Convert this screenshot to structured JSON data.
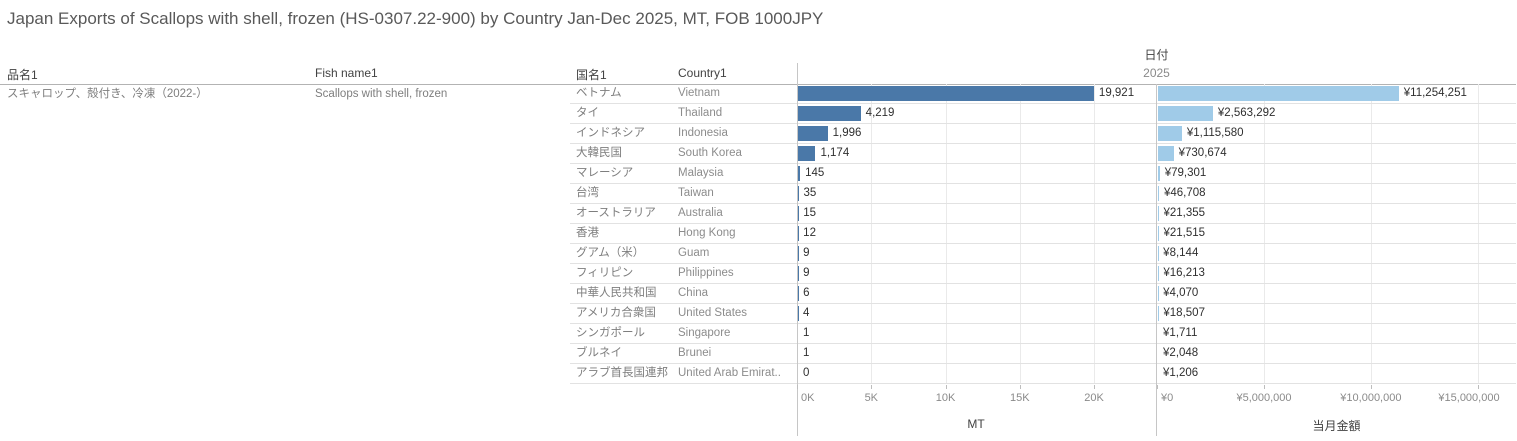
{
  "title": "Japan Exports of Scallops with shell, frozen (HS-0307.22-900) by Country Jan-Dec 2025, MT, FOB 1000JPY",
  "date_header": {
    "label": "日付",
    "year": "2025"
  },
  "columns": {
    "product_jp": "品名1",
    "product_en": "Fish name1",
    "country_jp": "国名1",
    "country_en": "Country1"
  },
  "product_row": {
    "name_jp": "スキャロップ、殻付き、冷凍（2022-）",
    "name_en": "Scallops with shell, frozen"
  },
  "rows": [
    {
      "country_jp": "ベトナム",
      "country_en": "Vietnam",
      "mt": 19921,
      "mt_label": "19,921",
      "amount": 11254251,
      "amount_label": "¥11,254,251"
    },
    {
      "country_jp": "タイ",
      "country_en": "Thailand",
      "mt": 4219,
      "mt_label": "4,219",
      "amount": 2563292,
      "amount_label": "¥2,563,292"
    },
    {
      "country_jp": "インドネシア",
      "country_en": "Indonesia",
      "mt": 1996,
      "mt_label": "1,996",
      "amount": 1115580,
      "amount_label": "¥1,115,580"
    },
    {
      "country_jp": "大韓民国",
      "country_en": "South Korea",
      "mt": 1174,
      "mt_label": "1,174",
      "amount": 730674,
      "amount_label": "¥730,674"
    },
    {
      "country_jp": "マレーシア",
      "country_en": "Malaysia",
      "mt": 145,
      "mt_label": "145",
      "amount": 79301,
      "amount_label": "¥79,301"
    },
    {
      "country_jp": "台湾",
      "country_en": "Taiwan",
      "mt": 35,
      "mt_label": "35",
      "amount": 46708,
      "amount_label": "¥46,708"
    },
    {
      "country_jp": "オーストラリア",
      "country_en": "Australia",
      "mt": 15,
      "mt_label": "15",
      "amount": 21355,
      "amount_label": "¥21,355"
    },
    {
      "country_jp": "香港",
      "country_en": "Hong Kong",
      "mt": 12,
      "mt_label": "12",
      "amount": 21515,
      "amount_label": "¥21,515"
    },
    {
      "country_jp": "グアム（米）",
      "country_en": "Guam",
      "mt": 9,
      "mt_label": "9",
      "amount": 8144,
      "amount_label": "¥8,144"
    },
    {
      "country_jp": "フィリピン",
      "country_en": "Philippines",
      "mt": 9,
      "mt_label": "9",
      "amount": 16213,
      "amount_label": "¥16,213"
    },
    {
      "country_jp": "中華人民共和国",
      "country_en": "China",
      "mt": 6,
      "mt_label": "6",
      "amount": 4070,
      "amount_label": "¥4,070"
    },
    {
      "country_jp": "アメリカ合衆国",
      "country_en": "United States",
      "mt": 4,
      "mt_label": "4",
      "amount": 18507,
      "amount_label": "¥18,507"
    },
    {
      "country_jp": "シンガポール",
      "country_en": "Singapore",
      "mt": 1,
      "mt_label": "1",
      "amount": 1711,
      "amount_label": "¥1,711"
    },
    {
      "country_jp": "ブルネイ",
      "country_en": "Brunei",
      "mt": 1,
      "mt_label": "1",
      "amount": 2048,
      "amount_label": "¥2,048"
    },
    {
      "country_jp": "アラブ首長国連邦",
      "country_en": "United Arab Emirat..",
      "mt": 0,
      "mt_label": "0",
      "amount": 1206,
      "amount_label": "¥1,206"
    }
  ],
  "mt_axis": {
    "title": "MT",
    "max": 24100,
    "ticks": [
      {
        "value": 0,
        "label": "0K"
      },
      {
        "value": 5000,
        "label": "5K"
      },
      {
        "value": 10000,
        "label": "10K"
      },
      {
        "value": 15000,
        "label": "15K"
      },
      {
        "value": 20000,
        "label": "20K"
      }
    ]
  },
  "amount_axis": {
    "title": "当月金額",
    "max": 16780000,
    "ticks": [
      {
        "value": 0,
        "label": "¥0"
      },
      {
        "value": 5000000,
        "label": "¥5,000,000"
      },
      {
        "value": 10000000,
        "label": "¥10,000,000"
      },
      {
        "value": 15000000,
        "label": "¥15,000,000"
      }
    ]
  },
  "colors": {
    "mt_bar": "#4a78a8",
    "amount_bar": "#a0cbe8"
  },
  "chart_data": {
    "type": "bar",
    "orientation": "horizontal",
    "title": "Japan Exports of Scallops with shell, frozen (HS-0307.22-900) by Country Jan-Dec 2025, MT, FOB 1000JPY",
    "group_header": "日付",
    "group_value": "2025",
    "categories": [
      "Vietnam",
      "Thailand",
      "Indonesia",
      "South Korea",
      "Malaysia",
      "Taiwan",
      "Australia",
      "Hong Kong",
      "Guam",
      "Philippines",
      "China",
      "United States",
      "Singapore",
      "Brunei",
      "United Arab Emirates"
    ],
    "categories_jp": [
      "ベトナム",
      "タイ",
      "インドネシア",
      "大韓民国",
      "マレーシア",
      "台湾",
      "オーストラリア",
      "香港",
      "グアム（米）",
      "フィリピン",
      "中華人民共和国",
      "アメリカ合衆国",
      "シンガポール",
      "ブルネイ",
      "アラブ首長国連邦"
    ],
    "series": [
      {
        "name": "MT",
        "values": [
          19921,
          4219,
          1996,
          1174,
          145,
          35,
          15,
          12,
          9,
          9,
          6,
          4,
          1,
          1,
          0
        ],
        "xlabel": "MT",
        "xlim": [
          0,
          24100
        ],
        "tick_labels": [
          "0K",
          "5K",
          "10K",
          "15K",
          "20K"
        ],
        "color": "#4a78a8"
      },
      {
        "name": "当月金額",
        "values": [
          11254251,
          2563292,
          1115580,
          730674,
          79301,
          46708,
          21355,
          21515,
          8144,
          16213,
          4070,
          18507,
          1711,
          2048,
          1206
        ],
        "xlabel": "当月金額",
        "xlim": [
          0,
          16780000
        ],
        "tick_labels": [
          "¥0",
          "¥5,000,000",
          "¥10,000,000",
          "¥15,000,000"
        ],
        "color": "#a0cbe8"
      }
    ],
    "grid": true,
    "legend_position": "none"
  }
}
